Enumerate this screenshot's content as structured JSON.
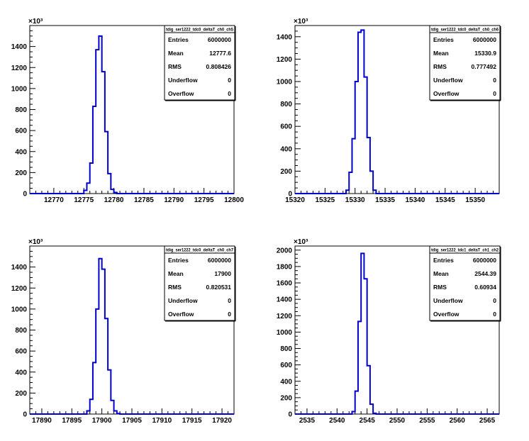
{
  "chart_data": [
    {
      "type": "bar",
      "title": "tdig_ser1222_tdc0_deltaT_ch0_ch5",
      "y_multiplier": "×10³",
      "xlim": [
        12766,
        12800
      ],
      "ylim": [
        0,
        1600
      ],
      "x_ticks": [
        12770,
        12775,
        12780,
        12785,
        12790,
        12795,
        12800
      ],
      "y_ticks": [
        0,
        200,
        400,
        600,
        800,
        1000,
        1200,
        1400
      ],
      "bin_edges": [
        12775,
        12775.5,
        12776,
        12776.5,
        12777,
        12777.5,
        12778,
        12778.5,
        12779,
        12779.5,
        12780,
        12780.5
      ],
      "values": [
        30,
        100,
        290,
        830,
        1370,
        1500,
        1160,
        590,
        190,
        40,
        10
      ],
      "stats": [
        {
          "label": "Entries",
          "value": "6000000"
        },
        {
          "label": "Mean",
          "value": "12777.6"
        },
        {
          "label": "RMS",
          "value": "0.808426"
        },
        {
          "label": "Underflow",
          "value": "0"
        },
        {
          "label": "Overflow",
          "value": "0"
        }
      ]
    },
    {
      "type": "bar",
      "title": "tdig_ser1222_tdc0_deltaT_ch0_ch6",
      "y_multiplier": "×10³",
      "xlim": [
        15320,
        15354
      ],
      "ylim": [
        0,
        1500
      ],
      "x_ticks": [
        15320,
        15325,
        15330,
        15335,
        15340,
        15345,
        15350
      ],
      "y_ticks": [
        0,
        200,
        400,
        600,
        800,
        1000,
        1200,
        1400
      ],
      "bin_edges": [
        15328.5,
        15329,
        15329.5,
        15330,
        15330.5,
        15331,
        15331.5,
        15332,
        15332.5,
        15333,
        15333.5
      ],
      "values": [
        30,
        190,
        490,
        1000,
        1440,
        1460,
        1040,
        500,
        200,
        30
      ],
      "stats": [
        {
          "label": "Entries",
          "value": "6000000"
        },
        {
          "label": "Mean",
          "value": "15330.9"
        },
        {
          "label": "RMS",
          "value": "0.777492"
        },
        {
          "label": "Underflow",
          "value": "0"
        },
        {
          "label": "Overflow",
          "value": "0"
        }
      ]
    },
    {
      "type": "bar",
      "title": "tdig_ser1222_tdc0_deltaT_ch0_ch7",
      "y_multiplier": "×10³",
      "xlim": [
        17888,
        17922
      ],
      "ylim": [
        0,
        1600
      ],
      "x_ticks": [
        17890,
        17895,
        17900,
        17905,
        17910,
        17915,
        17920
      ],
      "y_ticks": [
        0,
        200,
        400,
        600,
        800,
        1000,
        1200,
        1400
      ],
      "bin_edges": [
        17897.5,
        17898,
        17898.5,
        17899,
        17899.5,
        17900,
        17900.5,
        17901,
        17901.5,
        17902,
        17902.5,
        17903
      ],
      "values": [
        30,
        140,
        490,
        1000,
        1480,
        1380,
        910,
        420,
        130,
        30,
        5
      ],
      "stats": [
        {
          "label": "Entries",
          "value": "6000000"
        },
        {
          "label": "Mean",
          "value": "17900"
        },
        {
          "label": "RMS",
          "value": "0.820531"
        },
        {
          "label": "Underflow",
          "value": "0"
        },
        {
          "label": "Overflow",
          "value": "0"
        }
      ]
    },
    {
      "type": "bar",
      "title": "tdig_ser1222_tdc1_deltaT_ch1_ch2",
      "y_multiplier": "×10³",
      "xlim": [
        2533,
        2567
      ],
      "ylim": [
        0,
        2050
      ],
      "x_ticks": [
        2535,
        2540,
        2545,
        2550,
        2555,
        2560,
        2565
      ],
      "y_ticks": [
        0,
        200,
        400,
        600,
        800,
        1000,
        1200,
        1400,
        1600,
        1800,
        2000
      ],
      "bin_edges": [
        2542.5,
        2543,
        2543.5,
        2544,
        2544.5,
        2545,
        2545.5,
        2546,
        2546.5
      ],
      "values": [
        30,
        280,
        1130,
        1960,
        1650,
        590,
        120,
        10
      ],
      "stats": [
        {
          "label": "Entries",
          "value": "6000000"
        },
        {
          "label": "Mean",
          "value": "2544.39"
        },
        {
          "label": "RMS",
          "value": "0.60934"
        },
        {
          "label": "Underflow",
          "value": "0"
        },
        {
          "label": "Overflow",
          "value": "0"
        }
      ]
    }
  ],
  "colors": {
    "histogram_line": "#0000cc",
    "frame": "#000000",
    "background": "#ffffff"
  }
}
